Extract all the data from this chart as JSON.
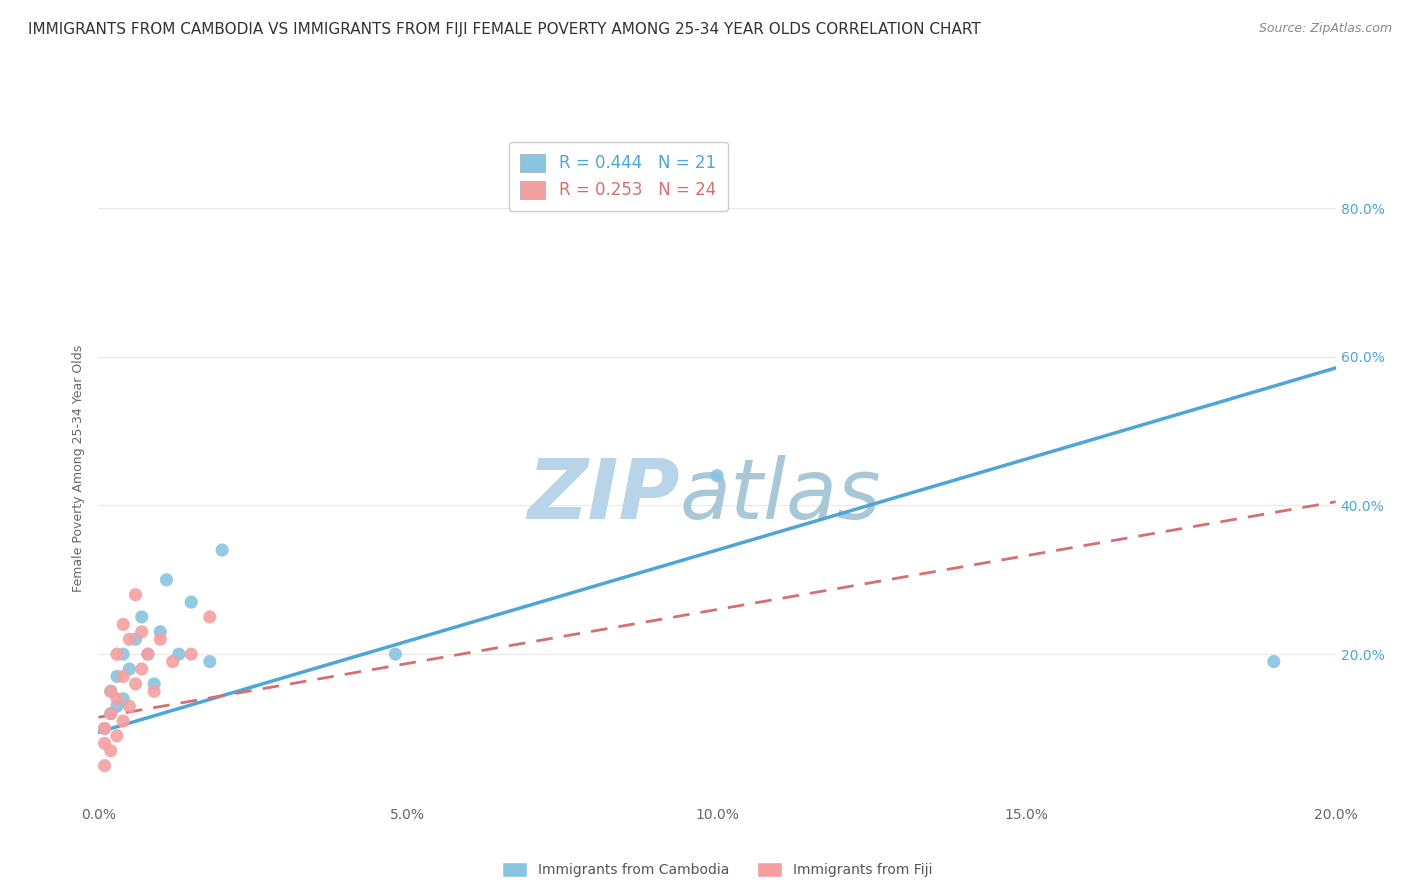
{
  "title": "IMMIGRANTS FROM CAMBODIA VS IMMIGRANTS FROM FIJI FEMALE POVERTY AMONG 25-34 YEAR OLDS CORRELATION CHART",
  "source": "Source: ZipAtlas.com",
  "ylabel": "Female Poverty Among 25-34 Year Olds",
  "cambodia_label": "Immigrants from Cambodia",
  "fiji_label": "Immigrants from Fiji",
  "cambodia_R": 0.444,
  "cambodia_N": 21,
  "fiji_R": 0.253,
  "fiji_N": 24,
  "xlim": [
    0.0,
    0.2
  ],
  "ylim": [
    0.0,
    0.9
  ],
  "xticks": [
    0.0,
    0.05,
    0.1,
    0.15,
    0.2
  ],
  "yticks": [
    0.0,
    0.2,
    0.4,
    0.6,
    0.8
  ],
  "ytick_labels_right": [
    "",
    "20.0%",
    "40.0%",
    "60.0%",
    "80.0%"
  ],
  "xtick_labels": [
    "0.0%",
    "5.0%",
    "10.0%",
    "15.0%",
    "20.0%"
  ],
  "watermark_part1": "ZIP",
  "watermark_part2": "atlas",
  "cambodia_color": "#89c4e1",
  "fiji_color": "#f4a0a0",
  "cambodia_line_color": "#4da6d6",
  "fiji_line_color": "#d47070",
  "cambodia_x": [
    0.001,
    0.002,
    0.002,
    0.003,
    0.003,
    0.004,
    0.004,
    0.005,
    0.006,
    0.007,
    0.008,
    0.009,
    0.01,
    0.011,
    0.013,
    0.015,
    0.018,
    0.02,
    0.048,
    0.1,
    0.19
  ],
  "cambodia_y": [
    0.1,
    0.12,
    0.15,
    0.13,
    0.17,
    0.14,
    0.2,
    0.18,
    0.22,
    0.25,
    0.2,
    0.16,
    0.23,
    0.3,
    0.2,
    0.27,
    0.19,
    0.34,
    0.2,
    0.44,
    0.19
  ],
  "fiji_x": [
    0.001,
    0.001,
    0.001,
    0.002,
    0.002,
    0.002,
    0.003,
    0.003,
    0.003,
    0.004,
    0.004,
    0.004,
    0.005,
    0.005,
    0.006,
    0.006,
    0.007,
    0.007,
    0.008,
    0.009,
    0.01,
    0.012,
    0.015,
    0.018
  ],
  "fiji_y": [
    0.05,
    0.08,
    0.1,
    0.07,
    0.12,
    0.15,
    0.09,
    0.14,
    0.2,
    0.11,
    0.17,
    0.24,
    0.13,
    0.22,
    0.16,
    0.28,
    0.18,
    0.23,
    0.2,
    0.15,
    0.22,
    0.19,
    0.2,
    0.25
  ],
  "background_color": "#ffffff",
  "grid_color": "#e8e8e8",
  "title_fontsize": 11,
  "axis_label_fontsize": 9,
  "tick_fontsize": 10,
  "legend_fontsize": 12,
  "watermark_color1": "#b8d4e8",
  "watermark_color2": "#a8c8d8",
  "watermark_fontsize": 60,
  "cam_line_intercept": 0.095,
  "cam_line_slope": 2.45,
  "fiji_line_intercept": 0.115,
  "fiji_line_slope": 1.45
}
